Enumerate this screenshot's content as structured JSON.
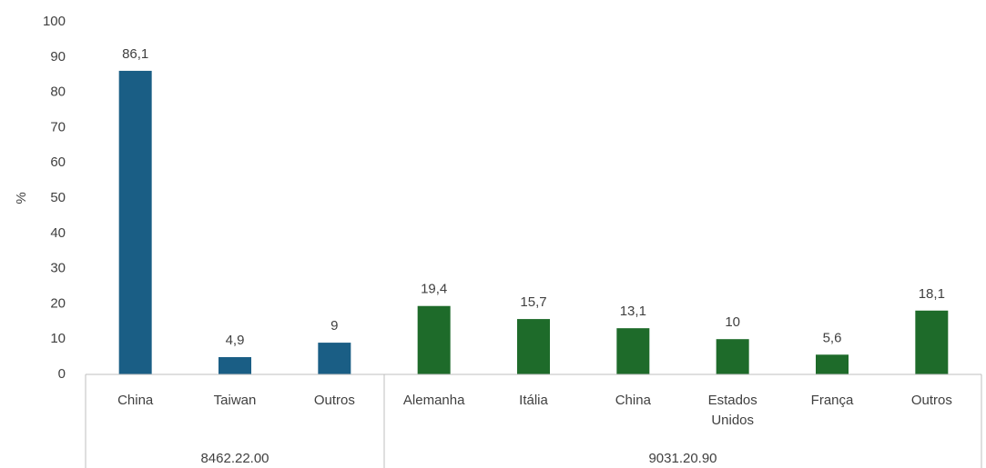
{
  "chart_data": {
    "type": "bar",
    "ylabel": "%",
    "ylim": [
      0,
      100
    ],
    "yticks": [
      0,
      10,
      20,
      30,
      40,
      50,
      60,
      70,
      80,
      90,
      100
    ],
    "grid": false,
    "groups": [
      {
        "label": "8462.22.00",
        "color": "#1a5e85",
        "categories": [
          "China",
          "Taiwan",
          "Outros"
        ],
        "values": [
          86.1,
          4.9,
          9
        ],
        "data_labels": [
          "86,1",
          "4,9",
          "9"
        ]
      },
      {
        "label": "9031.20.90",
        "color": "#1e6b2a",
        "categories": [
          "Alemanha",
          "Itália",
          "China",
          "Estados Unidos",
          "França",
          "Outros"
        ],
        "values": [
          19.4,
          15.7,
          13.1,
          10,
          5.6,
          18.1
        ],
        "data_labels": [
          "19,4",
          "15,7",
          "13,1",
          "10",
          "5,6",
          "18,1"
        ]
      }
    ]
  }
}
